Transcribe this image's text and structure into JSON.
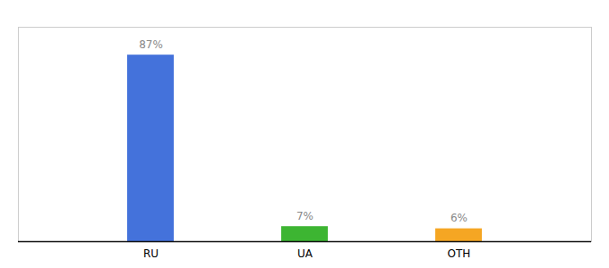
{
  "chart_data": {
    "type": "bar",
    "categories": [
      "RU",
      "UA",
      "OTH"
    ],
    "values": [
      87,
      7,
      6
    ],
    "value_labels": [
      "87%",
      "7%",
      "6%"
    ],
    "colors": [
      "#4472db",
      "#3db532",
      "#f5a623"
    ],
    "ylim": [
      0,
      100
    ],
    "data_labels": true,
    "tick_labels": "x",
    "grid": false
  }
}
